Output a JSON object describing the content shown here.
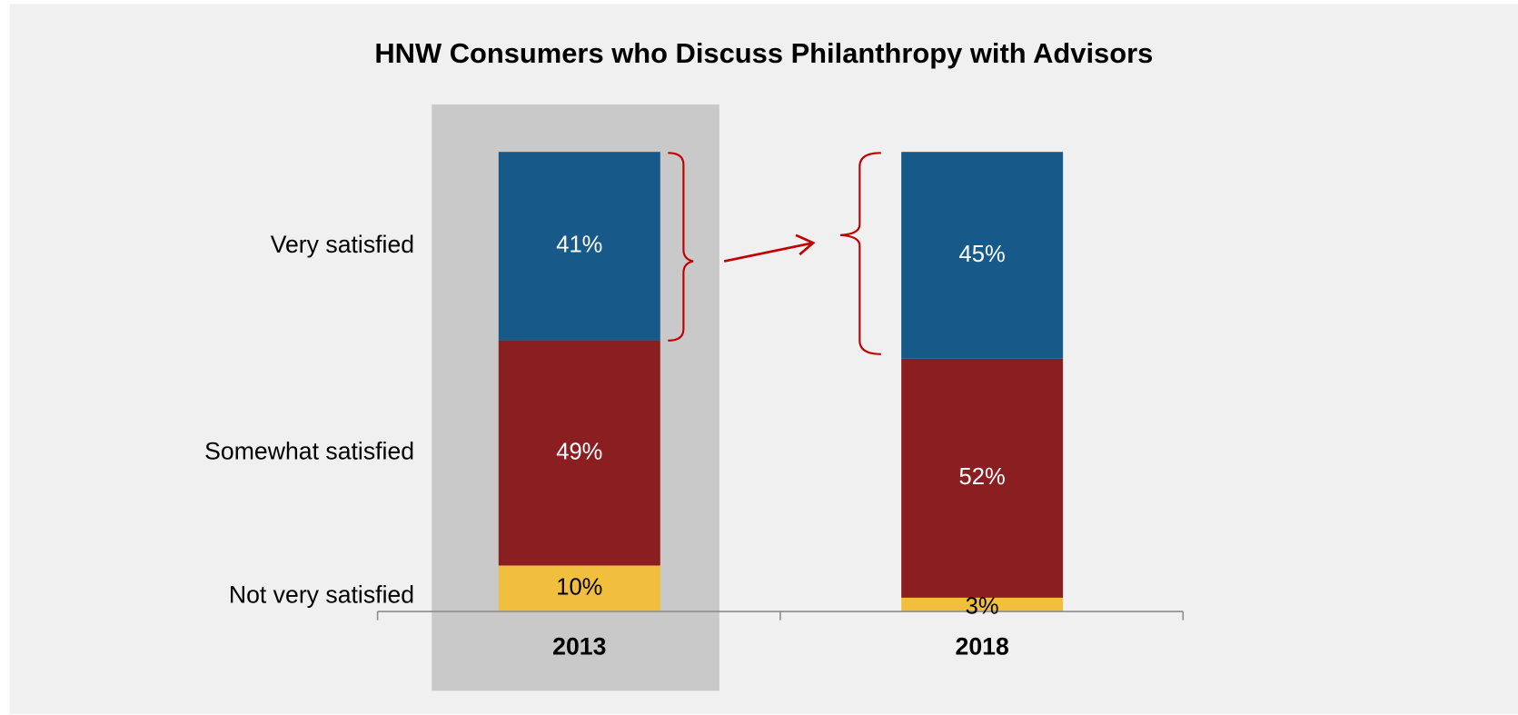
{
  "chart_data": {
    "type": "stacked_bar",
    "title": "HNW Consumers who Discuss Philanthropy with Advisors",
    "categories": [
      "2013",
      "2018"
    ],
    "series": [
      {
        "name": "Not very satisfied",
        "color": "#f2be3e",
        "values": [
          10,
          3
        ],
        "value_labels": [
          "10%",
          "3%"
        ]
      },
      {
        "name": "Somewhat satisfied",
        "color": "#8b1e21",
        "values": [
          49,
          52
        ],
        "value_labels": [
          "49%",
          "52%"
        ]
      },
      {
        "name": "Very satisfied",
        "color": "#175a8a",
        "values": [
          41,
          45
        ],
        "value_labels": [
          "41%",
          "45%"
        ]
      }
    ]
  }
}
